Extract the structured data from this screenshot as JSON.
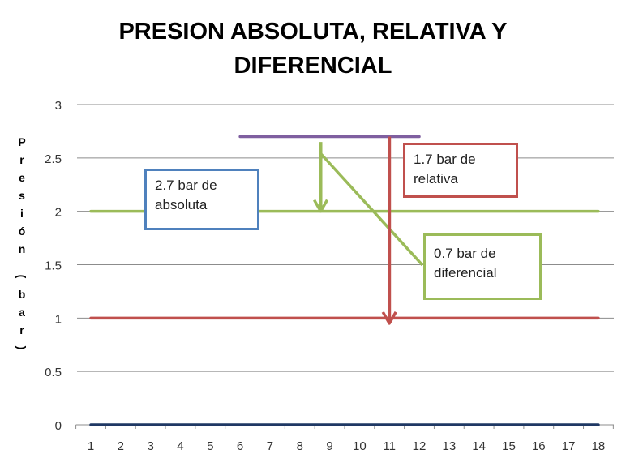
{
  "chart_data": {
    "type": "line",
    "title": [
      "PRESION ABSOLUTA, RELATIVA Y",
      "DIFERENCIAL"
    ],
    "ylabel": "Presión (bar)",
    "xlabel": "",
    "categories": [
      1,
      2,
      3,
      4,
      5,
      6,
      7,
      8,
      9,
      10,
      11,
      12,
      13,
      14,
      15,
      16,
      17,
      18
    ],
    "ylim": [
      0,
      3
    ],
    "yticks": [
      "0",
      "0.5",
      "1",
      "1.5",
      "2",
      "2.5",
      "3"
    ],
    "grid": true,
    "legend": "none",
    "series": [
      {
        "color": "#9bbb59",
        "x": [
          1,
          18
        ],
        "values": [
          2,
          2
        ]
      },
      {
        "color": "#c0504d",
        "x": [
          1,
          18
        ],
        "values": [
          1,
          1
        ]
      },
      {
        "color": "#1f3864",
        "x": [
          1,
          18
        ],
        "values": [
          0,
          0
        ]
      },
      {
        "color": "#7f5fa0",
        "x": [
          6,
          12
        ],
        "values": [
          2.7,
          2.7
        ]
      }
    ],
    "arrows": [
      {
        "color": "#9bbb59",
        "x": 8.7,
        "from": 2.65,
        "to": 2.0
      },
      {
        "color": "#c0504d",
        "x": 11,
        "from": 2.7,
        "to": 0.95
      }
    ],
    "annotations": [
      {
        "lines": [
          "2.7 bar de",
          "absoluta"
        ],
        "border": "#4f81bd"
      },
      {
        "lines": [
          "1.7 bar de",
          "relativa"
        ],
        "border": "#c0504d"
      },
      {
        "lines": [
          "0.7 bar de",
          "diferencial"
        ],
        "border": "#9bbb59"
      }
    ]
  }
}
